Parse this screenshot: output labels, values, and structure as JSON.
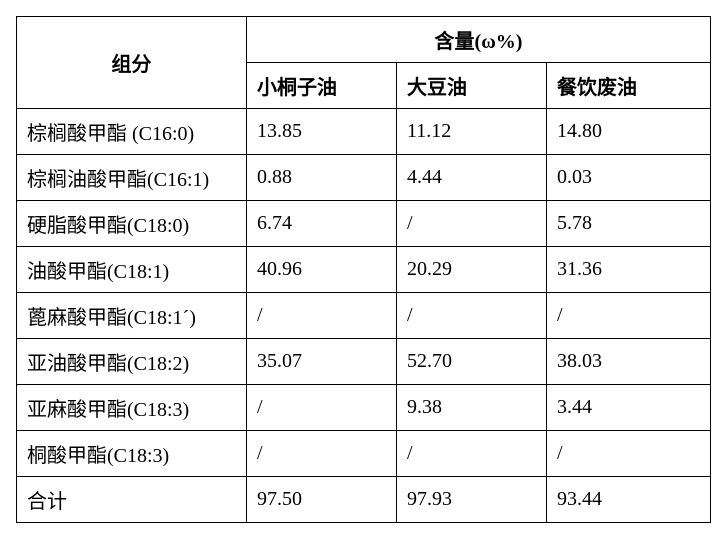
{
  "header": {
    "component": "组分",
    "content": "含量(ω%)",
    "sub": [
      "小桐子油",
      "大豆油",
      "餐饮废油"
    ]
  },
  "rows": [
    {
      "name": "棕榈酸甲酯 (C16:0)",
      "v": [
        "13.85",
        "11.12",
        "14.80"
      ]
    },
    {
      "name": "棕榈油酸甲酯(C16:1)",
      "v": [
        "0.88",
        "4.44",
        "0.03"
      ]
    },
    {
      "name": "硬脂酸甲酯(C18:0)",
      "v": [
        "6.74",
        "/",
        "5.78"
      ]
    },
    {
      "name": "油酸甲酯(C18:1)",
      "v": [
        "40.96",
        "20.29",
        "31.36"
      ]
    },
    {
      "name": "蓖麻酸甲酯(C18:1´)",
      "v": [
        "/",
        "/",
        "/"
      ]
    },
    {
      "name": "亚油酸甲酯(C18:2)",
      "v": [
        "35.07",
        "52.70",
        "38.03"
      ]
    },
    {
      "name": "亚麻酸甲酯(C18:3)",
      "v": [
        "/",
        "9.38",
        "3.44"
      ]
    },
    {
      "name": "桐酸甲酯(C18:3)",
      "v": [
        "/",
        "/",
        "/"
      ]
    },
    {
      "name": "合计",
      "v": [
        "97.50",
        "97.93",
        "93.44"
      ]
    }
  ]
}
